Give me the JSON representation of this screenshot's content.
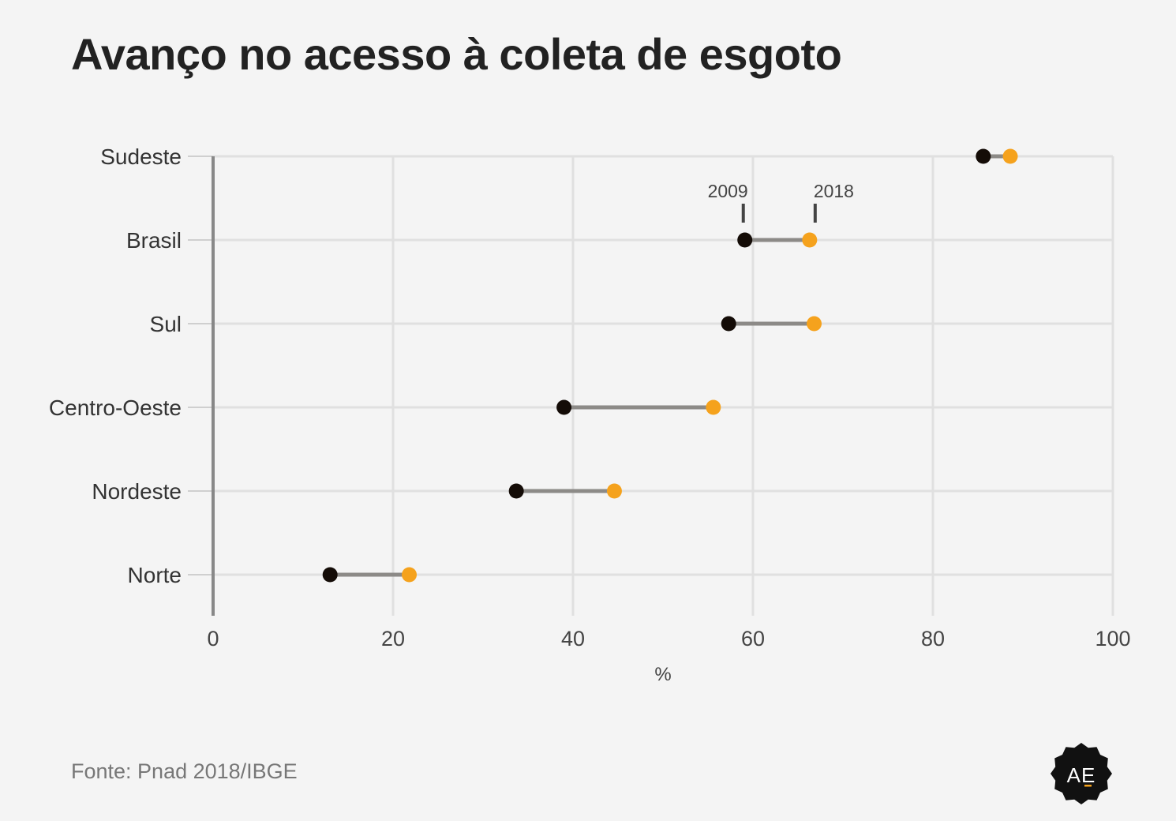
{
  "title": "Avanço no acesso à coleta de esgoto",
  "source": "Fonte: Pnad 2018/IBGE",
  "logo_text": "AE",
  "colors": {
    "background": "#f4f4f4",
    "grid": "#e0e0e0",
    "connector": "#8c8a87",
    "series_2009": "#140c07",
    "series_2018": "#f5a21d",
    "axis": "#888888"
  },
  "chart_data": {
    "type": "dumbbell",
    "xlabel": "%",
    "xlim": [
      0,
      100
    ],
    "x_ticks": [
      0,
      20,
      40,
      60,
      80,
      100
    ],
    "grid": true,
    "categories": [
      "Sudeste",
      "Brasil",
      "Sul",
      "Centro-Oeste",
      "Nordeste",
      "Norte"
    ],
    "series": [
      {
        "name": "2009",
        "values": [
          85.6,
          59.1,
          57.3,
          39.0,
          33.7,
          13.0
        ]
      },
      {
        "name": "2018",
        "values": [
          88.6,
          66.3,
          66.8,
          55.6,
          44.6,
          21.8
        ]
      }
    ],
    "annotation_category": "Brasil"
  }
}
